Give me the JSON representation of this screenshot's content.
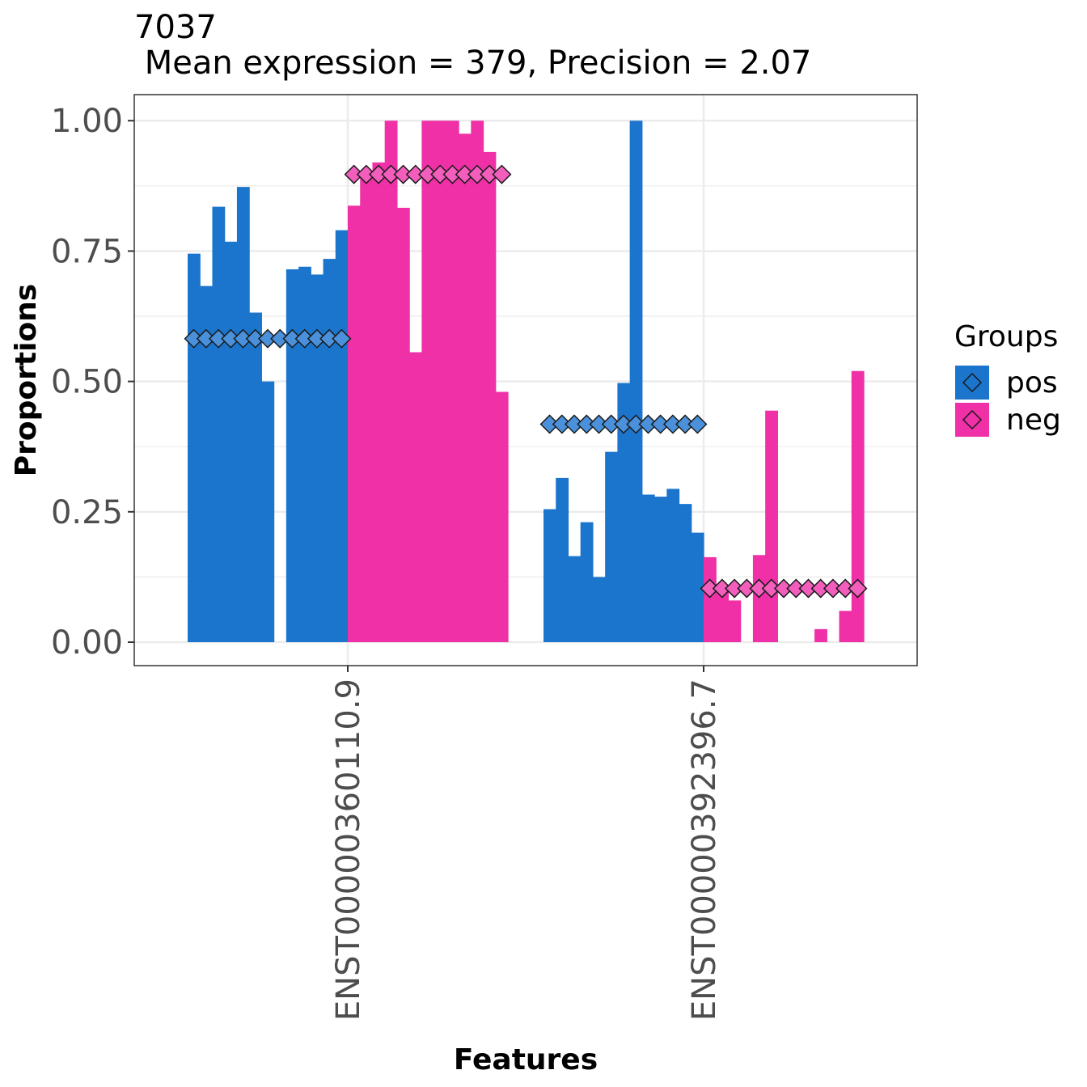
{
  "chart_data": {
    "type": "bar",
    "title": "7037",
    "subtitle": " Mean expression = 379, Precision = 2.07",
    "xlabel": "Features",
    "ylabel": "Proportions",
    "ylim": [
      -0.045,
      1.05
    ],
    "yticks": [
      0.0,
      0.25,
      0.5,
      0.75,
      1.0
    ],
    "ytick_labels": [
      "0.00",
      "0.25",
      "0.50",
      "0.75",
      "1.00"
    ],
    "grid": true,
    "legend": {
      "title": "Groups",
      "position": "right"
    },
    "categories": [
      "ENST00000360110.9",
      "ENST00000392396.7"
    ],
    "series": [
      {
        "name": "pos",
        "color": "#1c75cd",
        "marker_color": "#4a90da",
        "bars": [
          [
            0.745,
            0.683,
            0.835,
            0.768,
            0.873,
            0.632,
            0.5,
            0.0,
            0.715,
            0.72,
            0.705,
            0.735,
            0.79
          ],
          [
            0.255,
            0.315,
            0.165,
            0.23,
            0.125,
            0.365,
            0.497,
            1.0,
            0.283,
            0.279,
            0.294,
            0.265,
            0.21
          ]
        ],
        "group_mean": [
          0.582,
          0.418
        ]
      },
      {
        "name": "neg",
        "color": "#ef30a7",
        "marker_color": "#f35ebd",
        "bars": [
          [
            0.837,
            0.9,
            0.92,
            1.0,
            0.833,
            0.556,
            1.0,
            1.0,
            1.0,
            0.975,
            1.0,
            0.94,
            0.48
          ],
          [
            0.163,
            0.1,
            0.08,
            0.0,
            0.167,
            0.444,
            0.0,
            0.0,
            0.0,
            0.025,
            0.0,
            0.06,
            0.52
          ]
        ],
        "group_mean": [
          0.897,
          0.103
        ]
      }
    ]
  }
}
